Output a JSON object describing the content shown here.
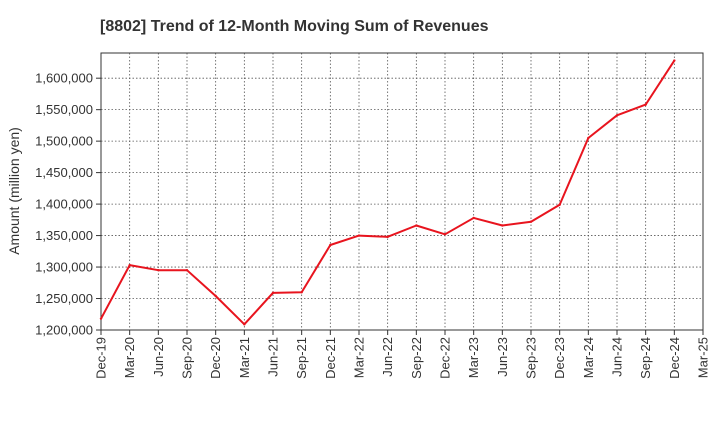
{
  "chart_data": {
    "type": "line",
    "title": "[8802]  Trend of 12-Month Moving Sum of Revenues",
    "xlabel": "",
    "ylabel": "Amount (million yen)",
    "ylim": [
      1200000,
      1640000
    ],
    "yticks": [
      1200000,
      1250000,
      1300000,
      1350000,
      1400000,
      1450000,
      1500000,
      1550000,
      1600000
    ],
    "ytick_labels": [
      "1,200,000",
      "1,250,000",
      "1,300,000",
      "1,350,000",
      "1,400,000",
      "1,450,000",
      "1,500,000",
      "1,550,000",
      "1,600,000"
    ],
    "x_categories": [
      "Dec-19",
      "Mar-20",
      "Jun-20",
      "Sep-20",
      "Dec-20",
      "Mar-21",
      "Jun-21",
      "Sep-21",
      "Dec-21",
      "Mar-22",
      "Jun-22",
      "Sep-22",
      "Dec-22",
      "Mar-23",
      "Jun-23",
      "Sep-23",
      "Dec-23",
      "Mar-24",
      "Jun-24",
      "Sep-24",
      "Dec-24",
      "Mar-25"
    ],
    "grid": true,
    "series": [
      {
        "color": "#e8141e",
        "values": [
          1218000,
          1303000,
          1295000,
          1295000,
          1254000,
          1209000,
          1259000,
          1260000,
          1335000,
          1350000,
          1348000,
          1366000,
          1352000,
          1378000,
          1366000,
          1372000,
          1399000,
          1505000,
          1541000,
          1558000,
          1628000,
          null
        ]
      }
    ]
  }
}
